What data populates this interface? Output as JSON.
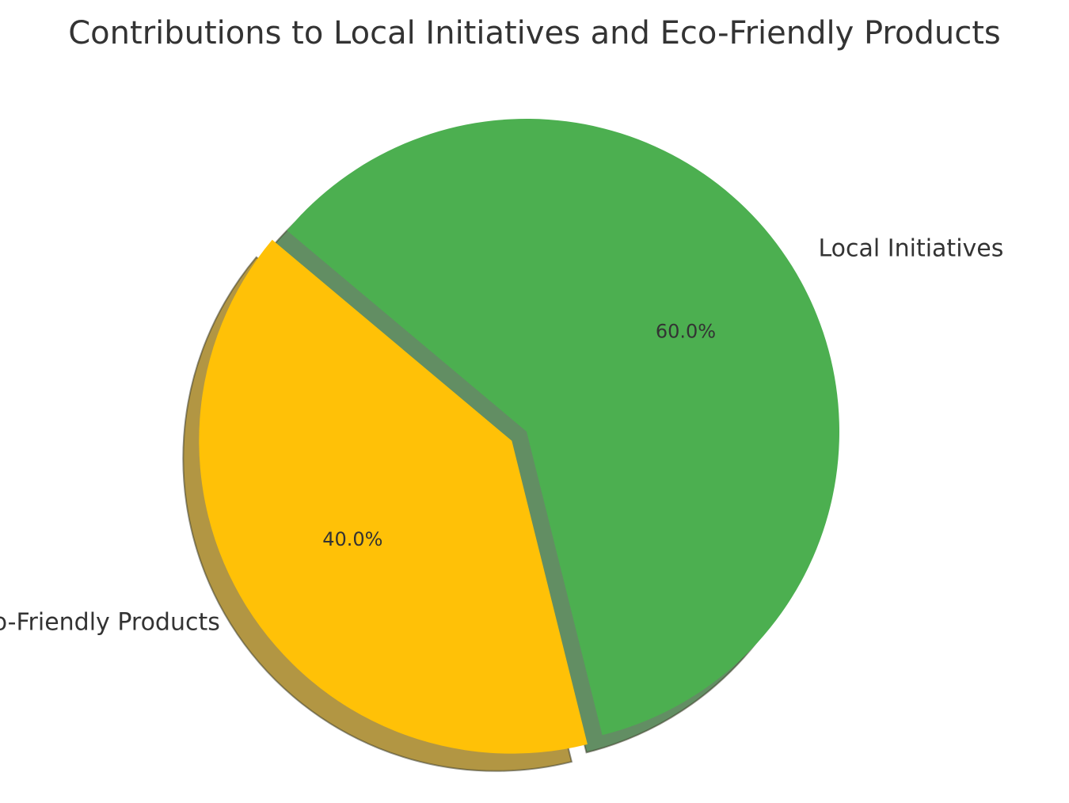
{
  "chart_data": {
    "type": "pie",
    "title": "Contributions to Local Initiatives and Eco-Friendly Products",
    "slices": [
      {
        "label": "Eco-Friendly Products",
        "value": 40.0,
        "pct_label": "40.0%",
        "color": "#FFC107",
        "exploded": true
      },
      {
        "label": "Local Initiatives",
        "value": 60.0,
        "pct_label": "60.0%",
        "color": "#4CAF50",
        "exploded": false
      }
    ],
    "shadow": true
  }
}
